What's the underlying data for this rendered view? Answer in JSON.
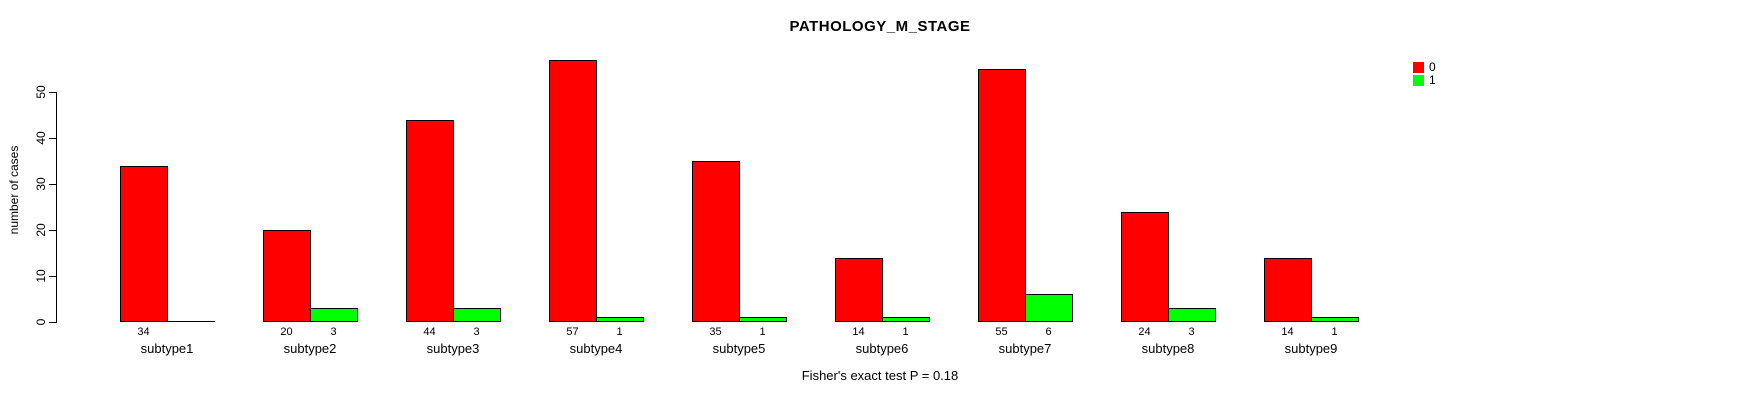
{
  "chart_data": {
    "type": "bar",
    "title": "PATHOLOGY_M_STAGE",
    "ylabel": "number of cases",
    "xlabel": "",
    "categories": [
      "subtype1",
      "subtype2",
      "subtype3",
      "subtype4",
      "subtype5",
      "subtype6",
      "subtype7",
      "subtype8",
      "subtype9"
    ],
    "series": [
      {
        "name": "0",
        "color": "#ff0000",
        "values": [
          34,
          20,
          44,
          57,
          35,
          14,
          55,
          24,
          14
        ]
      },
      {
        "name": "1",
        "color": "#00ff00",
        "values": [
          0,
          3,
          3,
          1,
          1,
          1,
          6,
          3,
          1
        ]
      }
    ],
    "bar_value_labels": true,
    "hide_zero_value_labels": true,
    "yticks": [
      0,
      10,
      20,
      30,
      40,
      50
    ],
    "ylim": [
      0,
      57
    ],
    "grid": false,
    "legend": {
      "position": "top-right",
      "entries": [
        {
          "label": "0",
          "color": "#ff0000"
        },
        {
          "label": "1",
          "color": "#00ff00"
        }
      ]
    },
    "annotation": "Fisher's exact test P = 0.18",
    "axis_color": "#000000",
    "background_color": "#ffffff"
  }
}
